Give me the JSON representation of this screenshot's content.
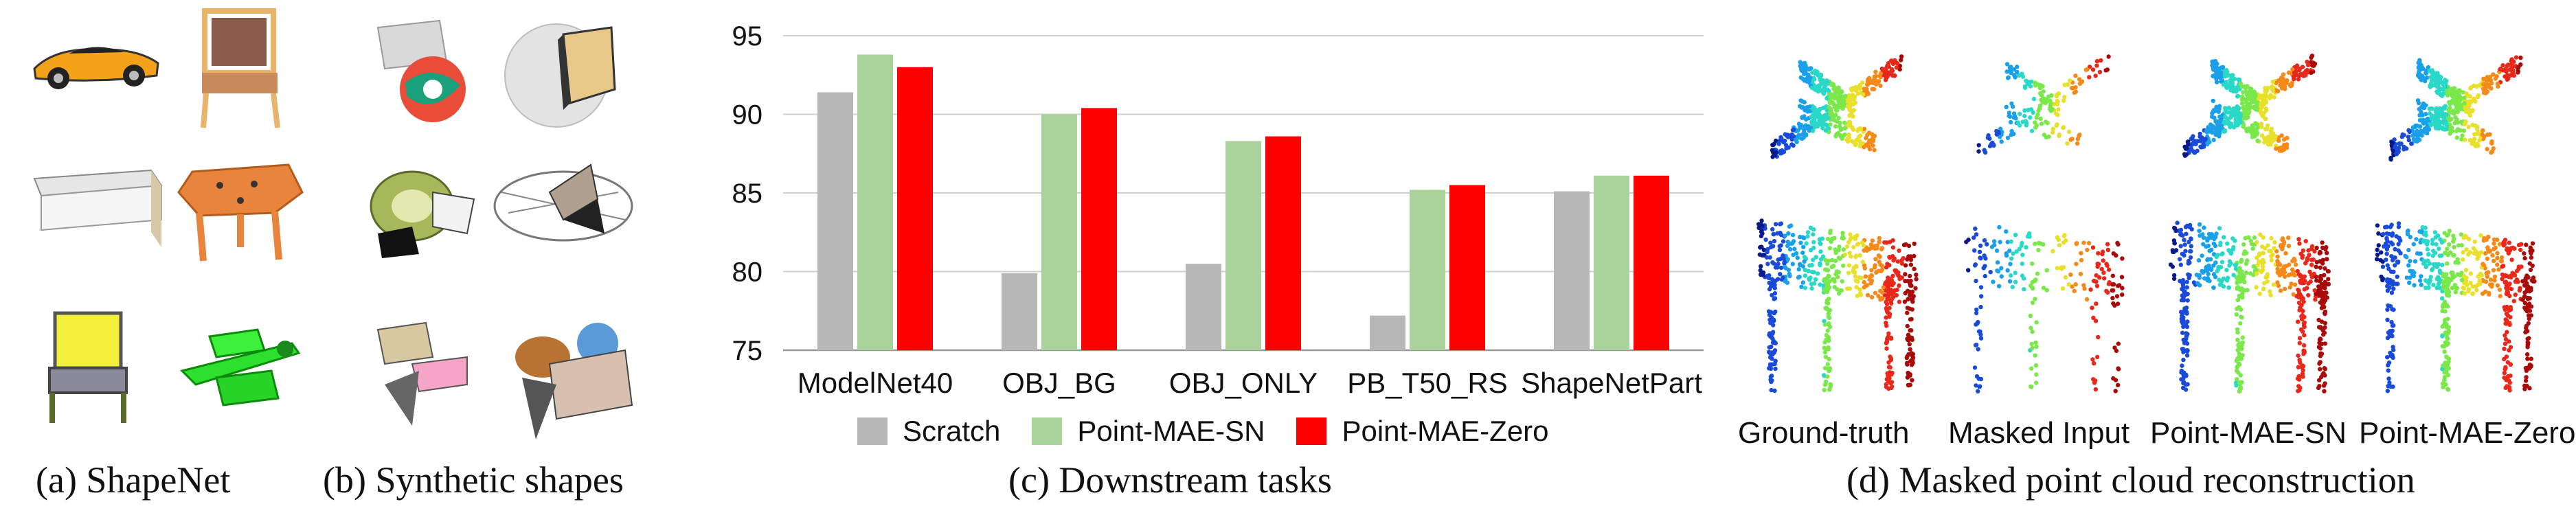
{
  "captions": {
    "a": "(a) ShapeNet",
    "b": "(b) Synthetic shapes",
    "c": "(c) Downstream tasks",
    "d": "(d) Masked point cloud reconstruction"
  },
  "shapenet_icons": [
    "car-icon",
    "chair-icon",
    "bench-icon",
    "table-icon",
    "armchair-icon",
    "airplane-icon"
  ],
  "synthetic_icons": [
    "synthetic-shape-1-icon",
    "synthetic-shape-2-icon",
    "synthetic-shape-3-icon",
    "synthetic-shape-4-icon",
    "synthetic-shape-5-icon",
    "synthetic-shape-6-icon"
  ],
  "chart_data": {
    "type": "bar",
    "categories": [
      "ModelNet40",
      "OBJ_BG",
      "OBJ_ONLY",
      "PB_T50_RS",
      "ShapeNetPart"
    ],
    "series": [
      {
        "name": "Scratch",
        "color": "#b7b7b7",
        "values": [
          91.4,
          79.9,
          80.5,
          77.2,
          85.1
        ]
      },
      {
        "name": "Point-MAE-SN",
        "color": "#a9d39a",
        "values": [
          93.8,
          90.0,
          88.3,
          85.2,
          86.1
        ]
      },
      {
        "name": "Point-MAE-Zero",
        "color": "#ff0000",
        "values": [
          93.0,
          90.4,
          88.6,
          85.5,
          86.1
        ]
      }
    ],
    "ylim": [
      75,
      95
    ],
    "yticks": [
      "75",
      "80",
      "85",
      "90",
      "95"
    ],
    "title": "",
    "xlabel": "",
    "ylabel": "",
    "grid": true,
    "legend": "bottom"
  },
  "reconstruction": {
    "labels": [
      "Ground-truth",
      "Masked Input",
      "Point-MAE-SN",
      "Point-MAE-Zero"
    ],
    "row_icons": [
      "airplane-pointcloud-icon",
      "table-pointcloud-icon"
    ]
  }
}
